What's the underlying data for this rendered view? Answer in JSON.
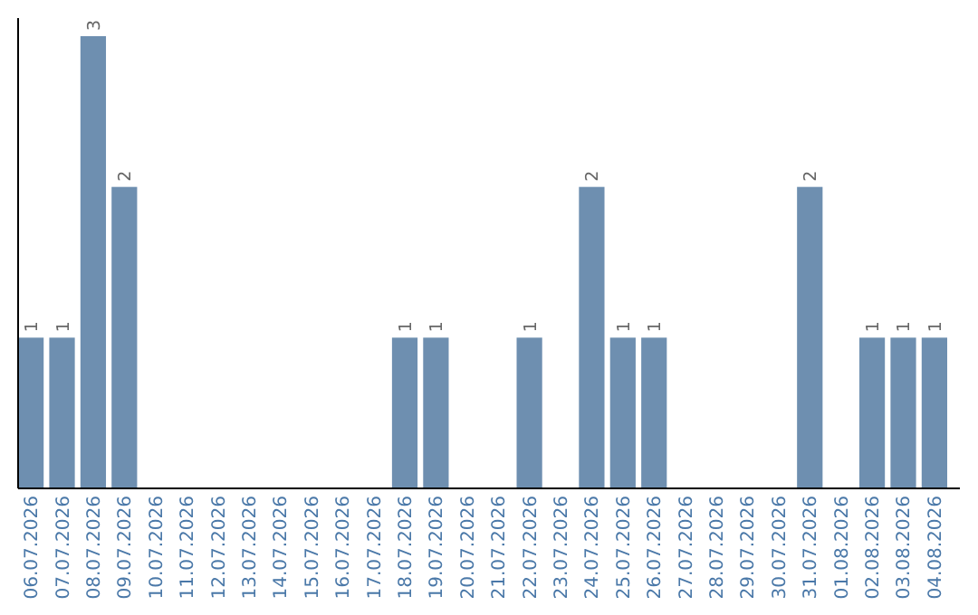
{
  "chart_data": {
    "type": "bar",
    "categories": [
      "06.07.2026",
      "07.07.2026",
      "08.07.2026",
      "09.07.2026",
      "10.07.2026",
      "11.07.2026",
      "12.07.2026",
      "13.07.2026",
      "14.07.2026",
      "15.07.2026",
      "16.07.2026",
      "17.07.2026",
      "18.07.2026",
      "19.07.2026",
      "20.07.2026",
      "21.07.2026",
      "22.07.2026",
      "23.07.2026",
      "24.07.2026",
      "25.07.2026",
      "26.07.2026",
      "27.07.2026",
      "28.07.2026",
      "29.07.2026",
      "30.07.2026",
      "31.07.2026",
      "01.08.2026",
      "02.08.2026",
      "03.08.2026",
      "04.08.2026"
    ],
    "values": [
      1,
      1,
      3,
      2,
      0,
      0,
      0,
      0,
      0,
      0,
      0,
      0,
      1,
      1,
      0,
      0,
      1,
      0,
      2,
      1,
      1,
      0,
      0,
      0,
      0,
      2,
      0,
      1,
      1,
      1
    ],
    "value_labels": [
      "1",
      "1",
      "3",
      "2",
      null,
      null,
      null,
      null,
      null,
      null,
      null,
      null,
      "1",
      "1",
      null,
      null,
      "1",
      null,
      "2",
      "1",
      "1",
      null,
      null,
      null,
      null,
      "2",
      null,
      "1",
      "1",
      "1"
    ],
    "color": "#6e8fb0",
    "tick_labels": "x"
  }
}
